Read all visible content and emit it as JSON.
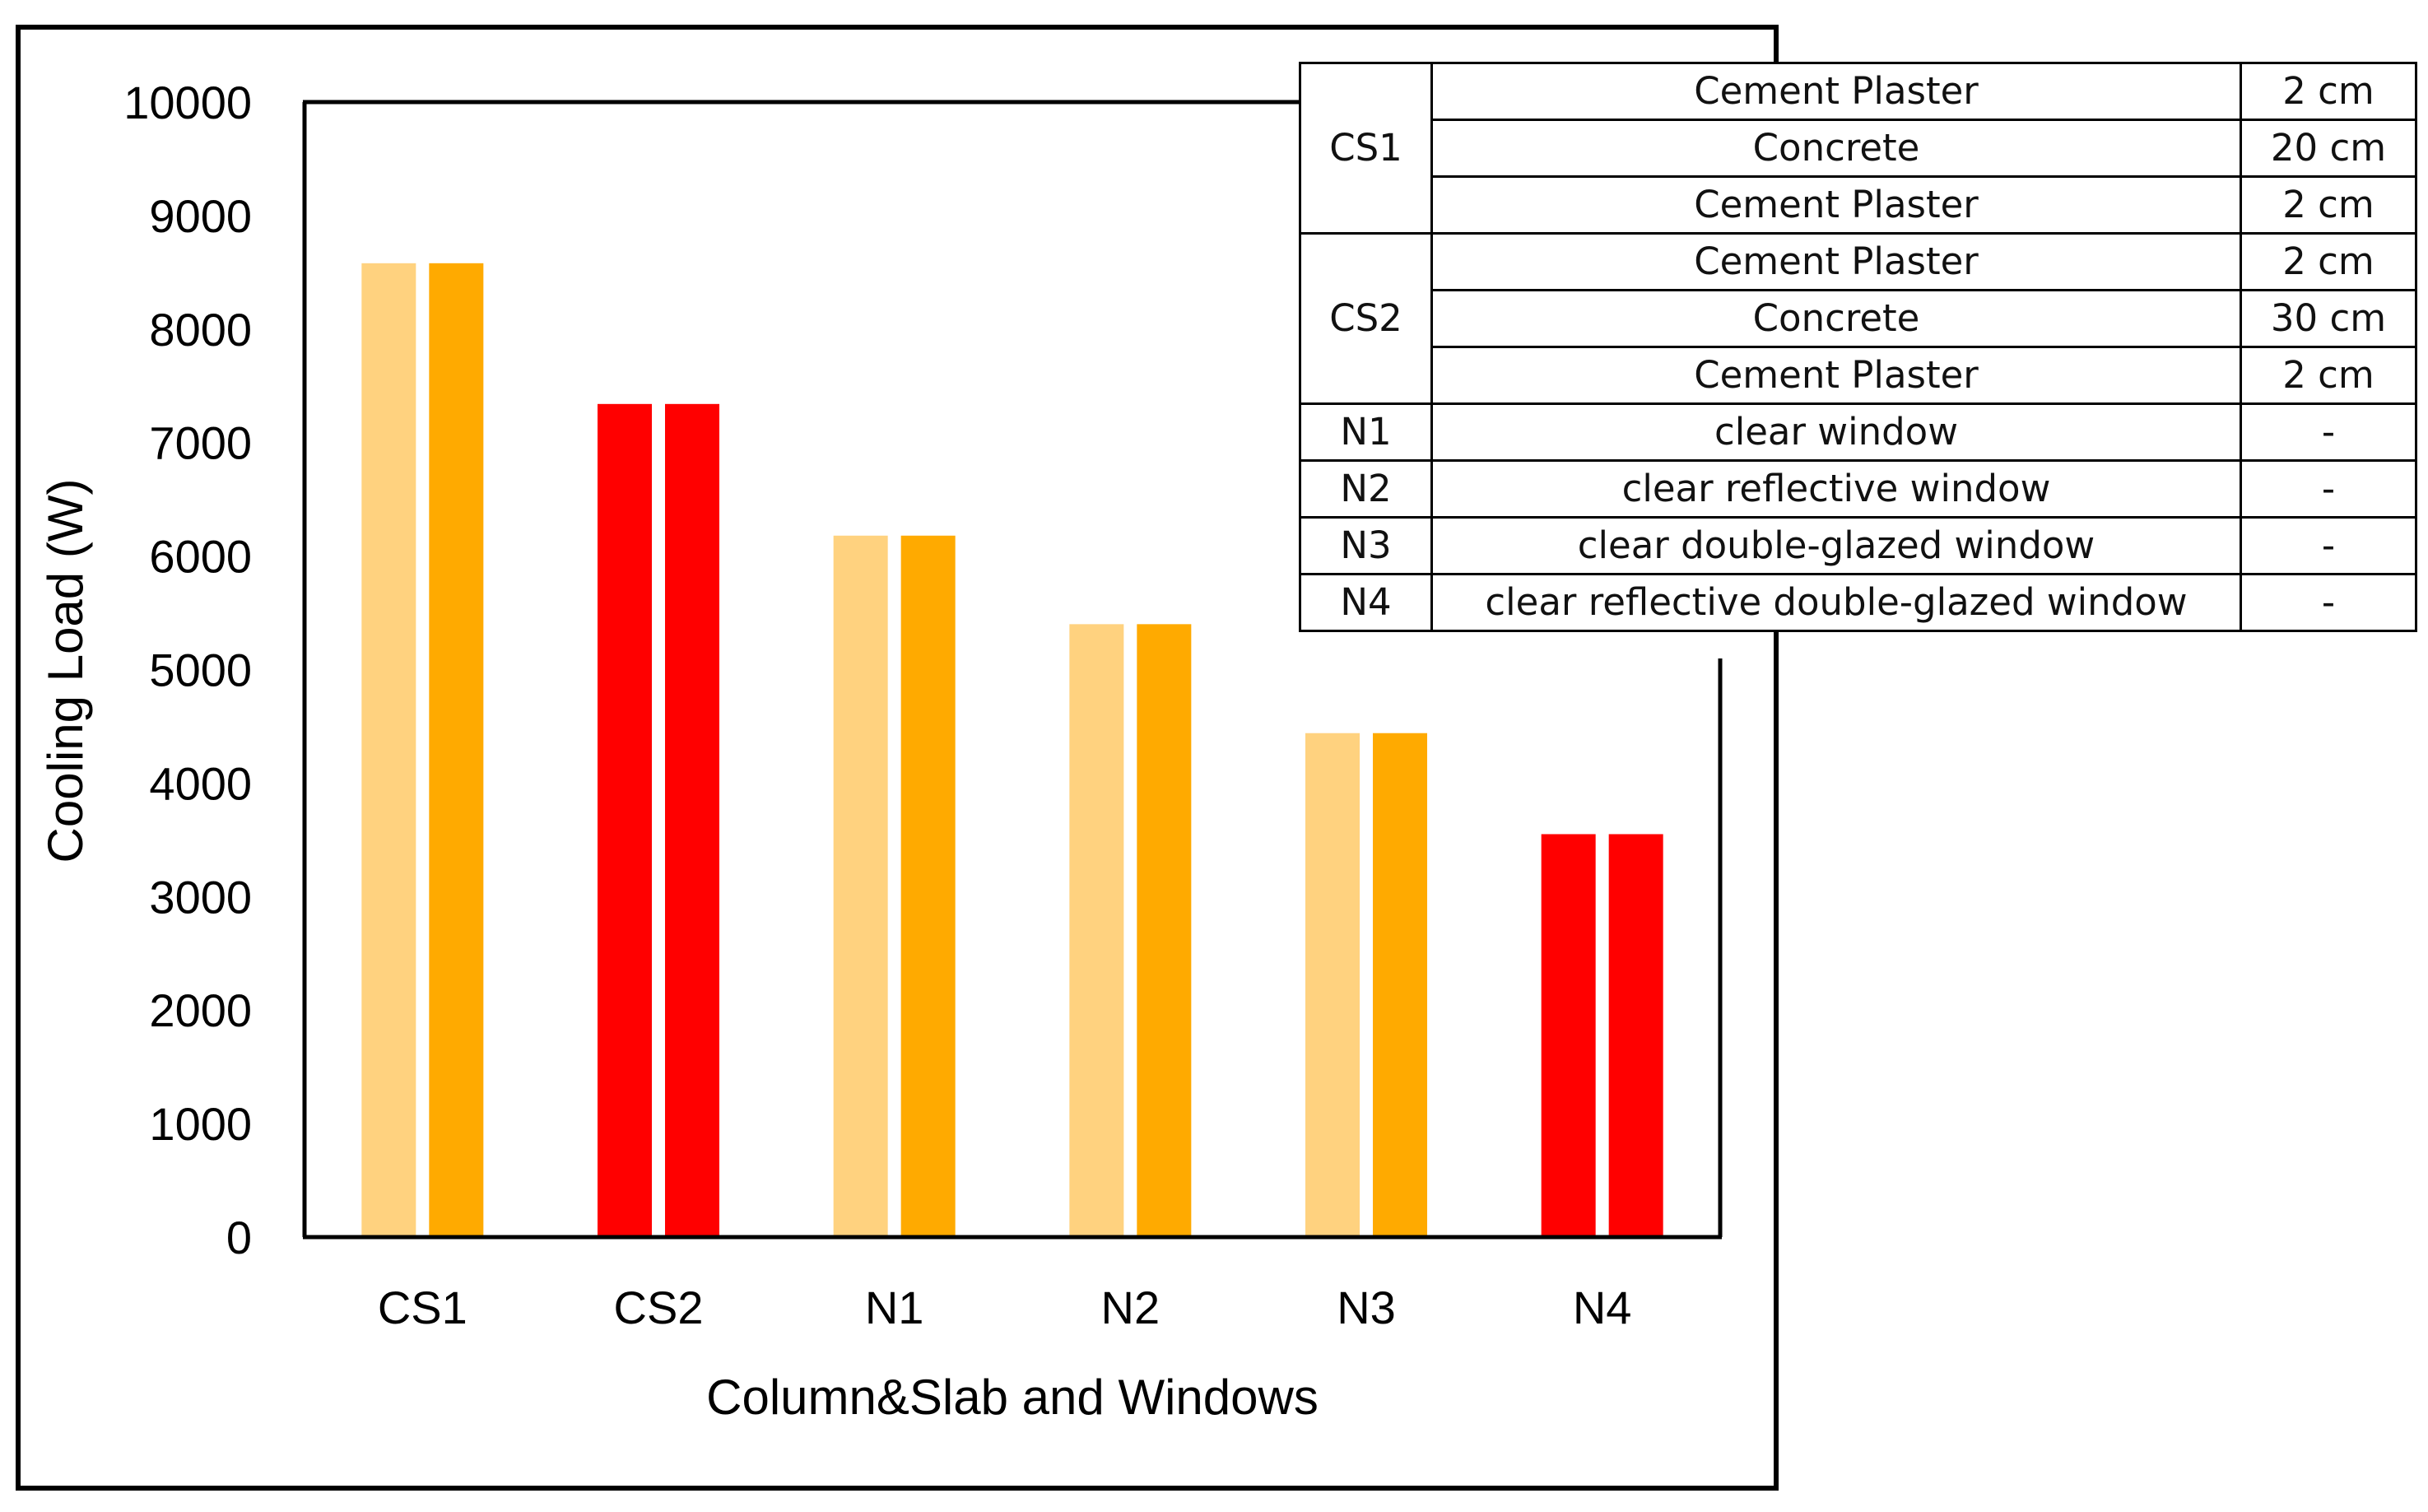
{
  "chart_data": {
    "type": "bar",
    "categories": [
      "CS1",
      "CS2",
      "N1",
      "N2",
      "N3",
      "N4"
    ],
    "series": [
      {
        "values": [
          8580,
          7340,
          6180,
          5400,
          4440,
          3550
        ]
      },
      {
        "values": [
          8580,
          7340,
          6180,
          5400,
          4440,
          3550
        ]
      }
    ],
    "bar_colors": [
      [
        "#FFD27F",
        "#FFAA00"
      ],
      [
        "#FF0000",
        "#FF0000"
      ],
      [
        "#FFD27F",
        "#FFAA00"
      ],
      [
        "#FFD27F",
        "#FFAA00"
      ],
      [
        "#FFD27F",
        "#FFAA00"
      ],
      [
        "#FF0000",
        "#FF0000"
      ]
    ],
    "title": "",
    "xlabel": "Column&Slab and Windows",
    "ylabel": "Cooling Load (W)",
    "ylim": [
      0,
      10000
    ],
    "yticks": [
      "0",
      "1000",
      "2000",
      "3000",
      "4000",
      "5000",
      "6000",
      "7000",
      "8000",
      "9000",
      "10000"
    ],
    "grid": false
  },
  "table": {
    "rows": [
      {
        "id": "CS1",
        "span": 3,
        "material": "Cement Plaster",
        "thickness": "2 cm"
      },
      {
        "material": "Concrete",
        "thickness": "20 cm"
      },
      {
        "material": "Cement Plaster",
        "thickness": "2 cm"
      },
      {
        "id": "CS2",
        "span": 3,
        "material": "Cement Plaster",
        "thickness": "2 cm"
      },
      {
        "material": "Concrete",
        "thickness": "30 cm"
      },
      {
        "material": "Cement Plaster",
        "thickness": "2 cm"
      },
      {
        "id": "N1",
        "span": 1,
        "material": "clear window",
        "thickness": "-"
      },
      {
        "id": "N2",
        "span": 1,
        "material": "clear reflective window",
        "thickness": "-"
      },
      {
        "id": "N3",
        "span": 1,
        "material": "clear double-glazed window",
        "thickness": "-"
      },
      {
        "id": "N4",
        "span": 1,
        "material": "clear reflective double-glazed window",
        "thickness": "-"
      }
    ]
  }
}
